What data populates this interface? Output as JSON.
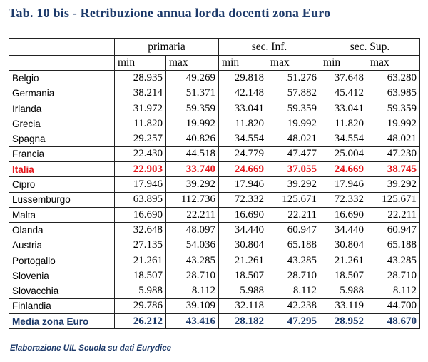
{
  "title": "Tab. 10 bis - Retribuzione annua lorda docenti zona Euro",
  "groups": [
    "primaria",
    "sec. Inf.",
    "sec. Sup."
  ],
  "subheaders": [
    "min",
    "max",
    "min",
    "max",
    "min",
    "max"
  ],
  "rows": [
    {
      "country": "Belgio",
      "values": [
        "28.935",
        "49.269",
        "29.818",
        "51.276",
        "37.648",
        "63.280"
      ]
    },
    {
      "country": "Germania",
      "values": [
        "38.214",
        "51.371",
        "42.148",
        "57.882",
        "45.412",
        "63.985"
      ]
    },
    {
      "country": "Irlanda",
      "values": [
        "31.972",
        "59.359",
        "33.041",
        "59.359",
        "33.041",
        "59.359"
      ]
    },
    {
      "country": "Grecia",
      "values": [
        "11.820",
        "19.992",
        "11.820",
        "19.992",
        "11.820",
        "19.992"
      ]
    },
    {
      "country": "Spagna",
      "values": [
        "29.257",
        "40.826",
        "34.554",
        "48.021",
        "34.554",
        "48.021"
      ]
    },
    {
      "country": "Francia",
      "values": [
        "22.430",
        "44.518",
        "24.779",
        "47.477",
        "25.004",
        "47.230"
      ]
    },
    {
      "country": "Italia",
      "values": [
        "22.903",
        "33.740",
        "24.669",
        "37.055",
        "24.669",
        "38.745"
      ],
      "highlight": true
    },
    {
      "country": "Cipro",
      "values": [
        "17.946",
        "39.292",
        "17.946",
        "39.292",
        "17.946",
        "39.292"
      ]
    },
    {
      "country": "Lussemburgo",
      "values": [
        "63.895",
        "112.736",
        "72.332",
        "125.671",
        "72.332",
        "125.671"
      ]
    },
    {
      "country": "Malta",
      "values": [
        "16.690",
        "22.211",
        "16.690",
        "22.211",
        "16.690",
        "22.211"
      ]
    },
    {
      "country": "Olanda",
      "values": [
        "32.648",
        "48.097",
        "34.440",
        "60.947",
        "34.440",
        "60.947"
      ]
    },
    {
      "country": "Austria",
      "values": [
        "27.135",
        "54.036",
        "30.804",
        "65.188",
        "30.804",
        "65.188"
      ]
    },
    {
      "country": "Portogallo",
      "values": [
        "21.261",
        "43.285",
        "21.261",
        "43.285",
        "21.261",
        "43.285"
      ]
    },
    {
      "country": "Slovenia",
      "values": [
        "18.507",
        "28.710",
        "18.507",
        "28.710",
        "18.507",
        "28.710"
      ]
    },
    {
      "country": "Slovacchia",
      "values": [
        "5.988",
        "8.112",
        "5.988",
        "8.112",
        "5.988",
        "8.112"
      ]
    },
    {
      "country": "Finlandia",
      "values": [
        "29.786",
        "39.109",
        "32.118",
        "42.238",
        "33.119",
        "44.700"
      ]
    }
  ],
  "media": {
    "country": "Media zona Euro",
    "values": [
      "26.212",
      "43.416",
      "28.182",
      "47.295",
      "28.952",
      "48.670"
    ]
  },
  "note": "Elaborazione UIL Scuola su dati Eurydice",
  "colors": {
    "title": "#1d3a6a",
    "highlight": "#e5161b"
  }
}
